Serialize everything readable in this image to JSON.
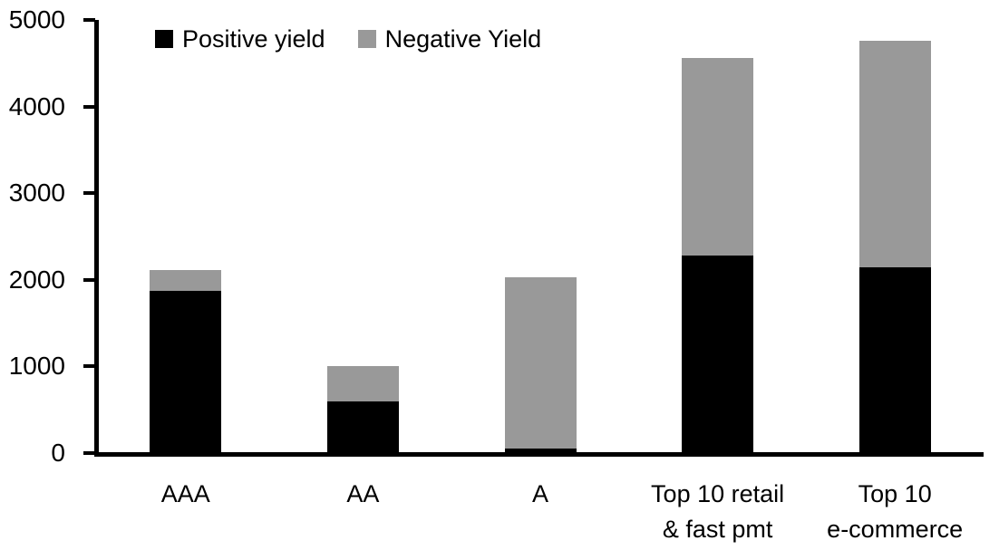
{
  "chart_data": {
    "type": "bar",
    "subtype": "stacked",
    "categories": [
      {
        "label": "AAA",
        "lines": [
          "AAA"
        ]
      },
      {
        "label": "AA",
        "lines": [
          "AA"
        ]
      },
      {
        "label": "A",
        "lines": [
          "A"
        ]
      },
      {
        "label": "Top 10 retail & fast pmt",
        "lines": [
          "Top 10 retail",
          "& fast pmt"
        ]
      },
      {
        "label": "Top 10 e-commerce",
        "lines": [
          "Top 10",
          "e-commerce"
        ]
      }
    ],
    "series": [
      {
        "name": "Positive yield",
        "color": "#000000",
        "values": [
          1870,
          600,
          50,
          2280,
          2140
        ]
      },
      {
        "name": "Negative Yield",
        "color": "#999999",
        "values": [
          240,
          400,
          1980,
          2280,
          2620
        ]
      }
    ],
    "ylim": [
      0,
      5000
    ],
    "yticks": [
      {
        "value": 0,
        "label": "0"
      },
      {
        "value": 1000,
        "label": "1000"
      },
      {
        "value": 2000,
        "label": "2000"
      },
      {
        "value": 3000,
        "label": "3000"
      },
      {
        "value": 4000,
        "label": "4000"
      },
      {
        "value": 5000,
        "label": "5000"
      }
    ],
    "grid": false,
    "legend_position": "top",
    "axis_color": "#000000",
    "background": "#ffffff"
  }
}
